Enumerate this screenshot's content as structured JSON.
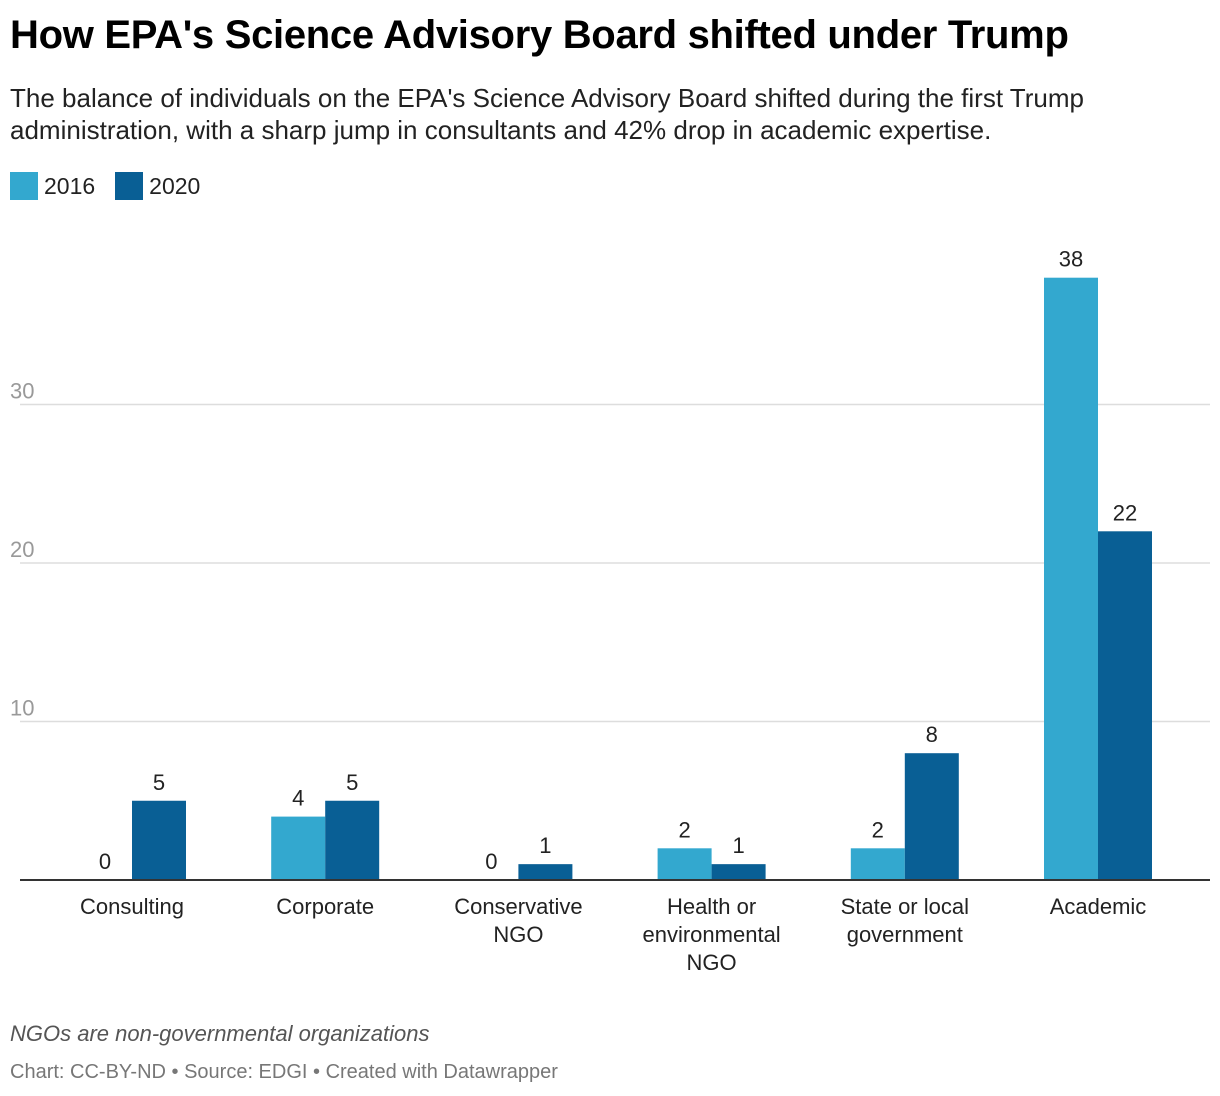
{
  "header": {
    "title": "How EPA's Science Advisory Board shifted under Trump",
    "subtitle": "The balance of individuals on the EPA's Science Advisory Board shifted during the first Trump administration, with a sharp jump in consultants and 42% drop in academic expertise."
  },
  "legend": [
    {
      "label": "2016",
      "color": "#33a8cf"
    },
    {
      "label": "2020",
      "color": "#095f95"
    }
  ],
  "chart_data": {
    "type": "bar",
    "categories": [
      [
        "Consulting"
      ],
      [
        "Corporate"
      ],
      [
        "Conservative",
        "NGO"
      ],
      [
        "Health or",
        "environmental",
        "NGO"
      ],
      [
        "State or local",
        "government"
      ],
      [
        "Academic"
      ]
    ],
    "series": [
      {
        "name": "2016",
        "color": "#33a8cf",
        "values": [
          0,
          4,
          0,
          2,
          2,
          38
        ]
      },
      {
        "name": "2020",
        "color": "#095f95",
        "values": [
          5,
          5,
          1,
          1,
          8,
          22
        ]
      }
    ],
    "ylim": [
      0,
      40
    ],
    "yticks": [
      10,
      20,
      30
    ],
    "grid": true,
    "legend_position": "top-left",
    "data_labels": true
  },
  "notes": {
    "note": "NGOs are non-governmental organizations",
    "footer": "Chart: CC-BY-ND • Source: EDGI • Created with Datawrapper"
  }
}
